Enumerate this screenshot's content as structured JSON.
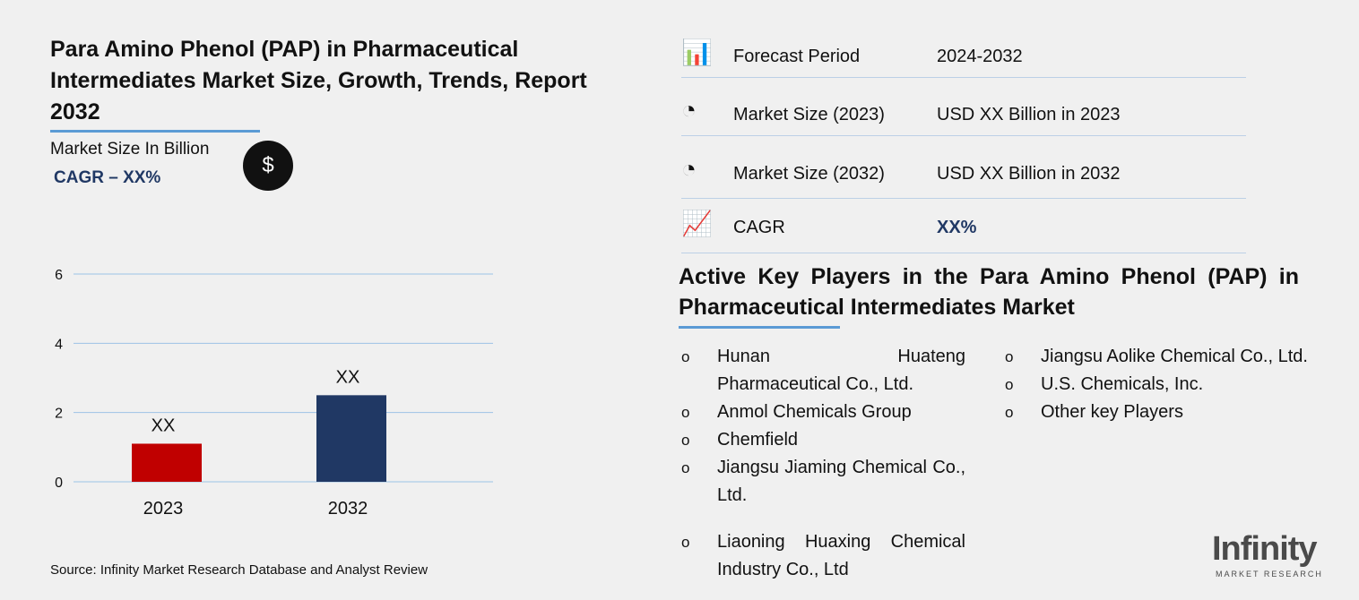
{
  "title": "Para Amino Phenol (PAP) in Pharmaceutical Intermediates Market Size, Growth, Trends, Report 2032",
  "market_size_label": "Market Size In Billion",
  "cagr_label": "CAGR – XX%",
  "source": "Source: Infinity Market Research Database and Analyst Review",
  "chart_data": {
    "type": "bar",
    "categories": [
      "2023",
      "2032"
    ],
    "values": [
      1.1,
      2.5
    ],
    "data_labels": [
      "XX",
      "XX"
    ],
    "colors": [
      "#c00000",
      "#203864"
    ],
    "ylim": [
      0,
      6
    ],
    "yticks": [
      "0",
      "2",
      "4",
      "6"
    ],
    "grid": true
  },
  "info": [
    {
      "icon": "bar-chart-icon",
      "label": "Forecast Period",
      "value": "2024-2032"
    },
    {
      "icon": "pie-chart-icon",
      "label": "Market Size (2023)",
      "value": "USD XX Billion in 2023"
    },
    {
      "icon": "pie-chart-icon",
      "label": "Market Size (2032)",
      "value": "USD XX Billion in 2032"
    },
    {
      "icon": "growth-icon",
      "label": "CAGR",
      "value": "XX%"
    }
  ],
  "key_players_title": "Active Key Players in the Para Amino Phenol (PAP) in Pharmaceutical Intermediates Market",
  "players_left": [
    "Hunan Huateng Pharmaceutical Co., Ltd.",
    "Anmol Chemicals Group",
    "Chemfield",
    "Jiangsu Jiaming Chemical Co., Ltd.",
    "Liaoning Huaxing Chemical Industry Co., Ltd"
  ],
  "players_right": [
    "Jiangsu Aolike Chemical Co., Ltd.",
    "U.S. Chemicals, Inc.",
    "Other key Players"
  ],
  "bullet": "o",
  "logo": {
    "name": "Infinity",
    "sub": "MARKET RESEARCH"
  }
}
